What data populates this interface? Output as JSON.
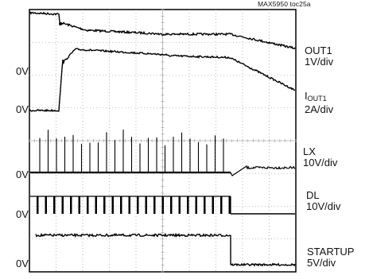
{
  "chart_data": {
    "type": "line",
    "title": "MAX5950 toc25a",
    "grid": "oscilloscope 10x8 divisions, dotted",
    "zero_label": "0V",
    "traces": [
      {
        "id": "out1",
        "name": "OUT1",
        "scale": "1V/div",
        "has_zero_label": false
      },
      {
        "id": "iout1",
        "name": "IOUT1",
        "name_main": "I",
        "name_sub": "OUT1",
        "scale": "2A/div",
        "has_zero_label": true
      },
      {
        "id": "lx",
        "name": "LX",
        "scale": "10V/div",
        "has_zero_label": true
      },
      {
        "id": "dl",
        "name": "DL",
        "scale": "10V/div",
        "has_zero_label": true
      },
      {
        "id": "startup",
        "name": "STARTUP",
        "scale": "5V/div",
        "has_zero_label": true
      }
    ]
  }
}
